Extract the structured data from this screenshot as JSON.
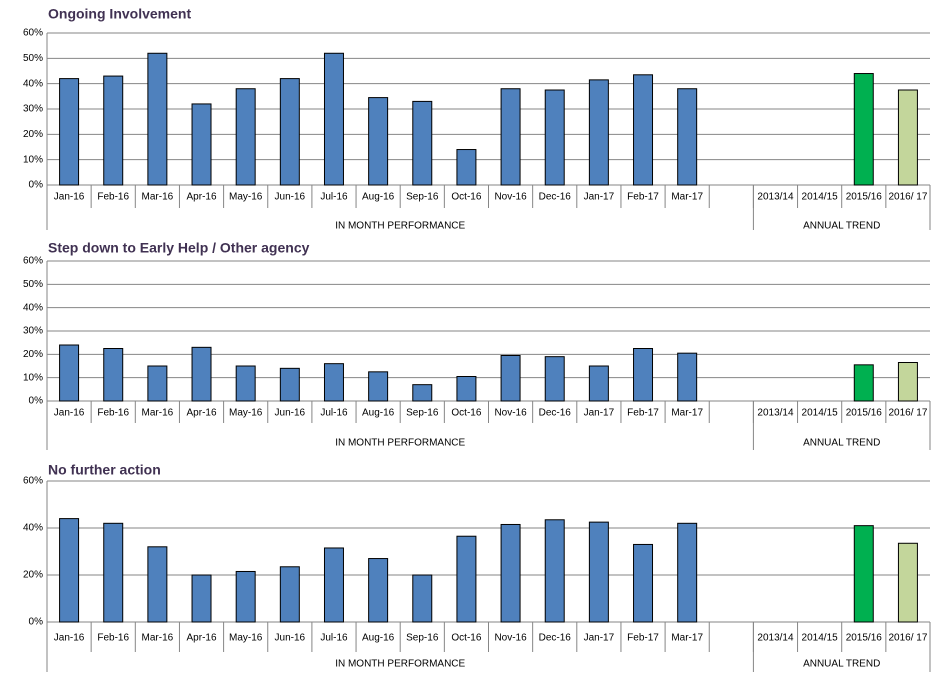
{
  "chart_data": [
    {
      "type": "bar",
      "title": "Ongoing Involvement",
      "categories": [
        "Jan-16",
        "Feb-16",
        "Mar-16",
        "Apr-16",
        "May-16",
        "Jun-16",
        "Jul-16",
        "Aug-16",
        "Sep-16",
        "Oct-16",
        "Nov-16",
        "Dec-16",
        "Jan-17",
        "Feb-17",
        "Mar-17",
        null,
        "2013/14",
        "2014/15",
        "2015/16",
        "2016/ 17"
      ],
      "values": [
        42,
        43,
        52,
        32,
        38,
        42,
        52,
        34.5,
        33,
        14,
        38,
        37.5,
        41.5,
        43.5,
        38,
        null,
        null,
        null,
        44,
        37.5
      ],
      "colors": [
        "#4f81bd",
        "#4f81bd",
        "#4f81bd",
        "#4f81bd",
        "#4f81bd",
        "#4f81bd",
        "#4f81bd",
        "#4f81bd",
        "#4f81bd",
        "#4f81bd",
        "#4f81bd",
        "#4f81bd",
        "#4f81bd",
        "#4f81bd",
        "#4f81bd",
        null,
        null,
        null,
        "#00b050",
        "#c3d69b"
      ],
      "groups": [
        {
          "label": "IN MONTH PERFORMANCE",
          "categories": 16
        },
        {
          "label": "ANNUAL TREND",
          "categories": 4
        }
      ],
      "ylim": [
        0,
        60
      ],
      "yticks": [
        {
          "value": 0,
          "label": "0%"
        },
        {
          "value": 10,
          "label": "10%"
        },
        {
          "value": 20,
          "label": "20%"
        },
        {
          "value": 30,
          "label": "30%"
        },
        {
          "value": 40,
          "label": "40%"
        },
        {
          "value": 50,
          "label": "50%"
        },
        {
          "value": 60,
          "label": "60%"
        }
      ],
      "grid": true
    },
    {
      "type": "bar",
      "title": "Step down to Early Help / Other agency",
      "categories": [
        "Jan-16",
        "Feb-16",
        "Mar-16",
        "Apr-16",
        "May-16",
        "Jun-16",
        "Jul-16",
        "Aug-16",
        "Sep-16",
        "Oct-16",
        "Nov-16",
        "Dec-16",
        "Jan-17",
        "Feb-17",
        "Mar-17",
        null,
        "2013/14",
        "2014/15",
        "2015/16",
        "2016/ 17"
      ],
      "values": [
        24,
        22.5,
        15,
        23,
        15,
        14,
        16,
        12.5,
        7,
        10.5,
        19.5,
        19,
        15,
        22.5,
        20.5,
        null,
        null,
        null,
        15.5,
        16.5
      ],
      "colors": [
        "#4f81bd",
        "#4f81bd",
        "#4f81bd",
        "#4f81bd",
        "#4f81bd",
        "#4f81bd",
        "#4f81bd",
        "#4f81bd",
        "#4f81bd",
        "#4f81bd",
        "#4f81bd",
        "#4f81bd",
        "#4f81bd",
        "#4f81bd",
        "#4f81bd",
        null,
        null,
        null,
        "#00b050",
        "#c3d69b"
      ],
      "groups": [
        {
          "label": "IN MONTH PERFORMANCE",
          "categories": 16
        },
        {
          "label": "ANNUAL TREND",
          "categories": 4
        }
      ],
      "ylim": [
        0,
        60
      ],
      "yticks": [
        {
          "value": 0,
          "label": "0%"
        },
        {
          "value": 10,
          "label": "10%"
        },
        {
          "value": 20,
          "label": "20%"
        },
        {
          "value": 30,
          "label": "30%"
        },
        {
          "value": 40,
          "label": "40%"
        },
        {
          "value": 50,
          "label": "50%"
        },
        {
          "value": 60,
          "label": "60%"
        }
      ],
      "grid": true
    },
    {
      "type": "bar",
      "title": "No further action",
      "categories": [
        "Jan-16",
        "Feb-16",
        "Mar-16",
        "Apr-16",
        "May-16",
        "Jun-16",
        "Jul-16",
        "Aug-16",
        "Sep-16",
        "Oct-16",
        "Nov-16",
        "Dec-16",
        "Jan-17",
        "Feb-17",
        "Mar-17",
        null,
        "2013/14",
        "2014/15",
        "2015/16",
        "2016/ 17"
      ],
      "values": [
        44,
        42,
        32,
        20,
        21.5,
        23.5,
        31.5,
        27,
        20,
        36.5,
        41.5,
        43.5,
        42.5,
        33,
        42,
        null,
        null,
        null,
        41,
        33.5
      ],
      "colors": [
        "#4f81bd",
        "#4f81bd",
        "#4f81bd",
        "#4f81bd",
        "#4f81bd",
        "#4f81bd",
        "#4f81bd",
        "#4f81bd",
        "#4f81bd",
        "#4f81bd",
        "#4f81bd",
        "#4f81bd",
        "#4f81bd",
        "#4f81bd",
        "#4f81bd",
        null,
        null,
        null,
        "#00b050",
        "#c3d69b"
      ],
      "groups": [
        {
          "label": "IN MONTH PERFORMANCE",
          "categories": 16
        },
        {
          "label": "ANNUAL TREND",
          "categories": 4
        }
      ],
      "ylim": [
        0,
        60
      ],
      "yticks": [
        {
          "value": 0,
          "label": "0%"
        },
        {
          "value": 20,
          "label": "20%"
        },
        {
          "value": 40,
          "label": "40%"
        },
        {
          "value": 60,
          "label": "60%"
        }
      ],
      "grid": true
    }
  ]
}
